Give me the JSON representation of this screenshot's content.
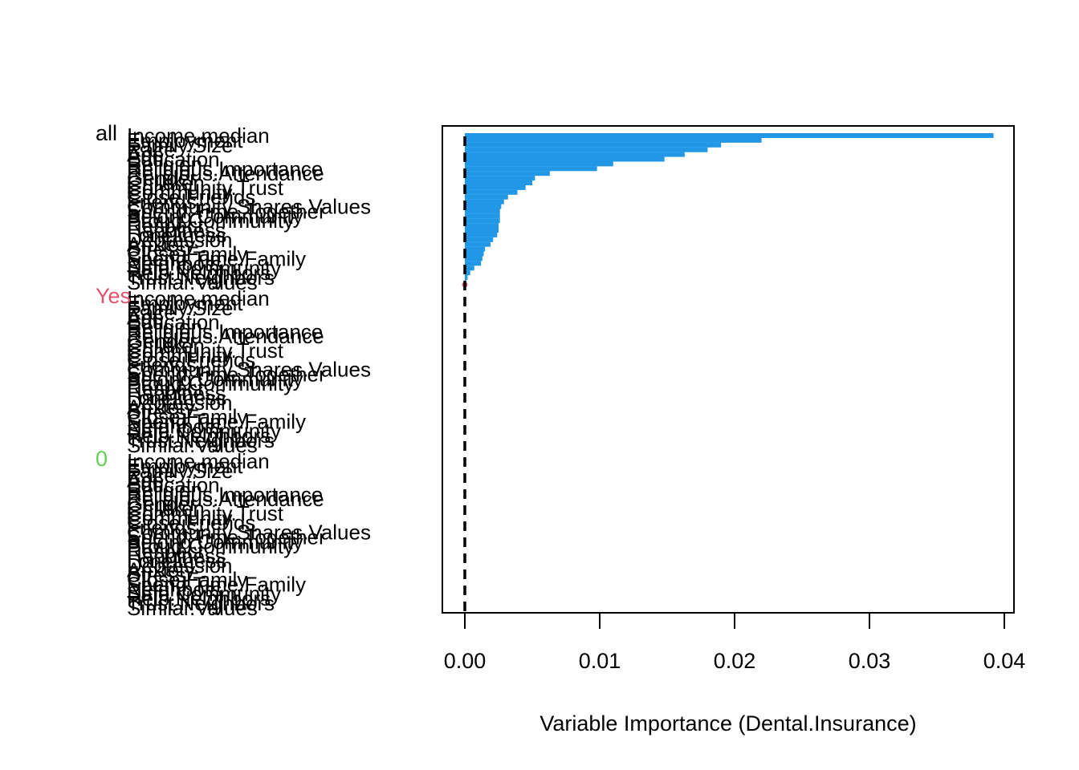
{
  "chart_data": {
    "type": "bar",
    "orientation": "horizontal",
    "xlabel": "Variable Importance (Dental.Insurance)",
    "xlim": [
      0,
      0.04
    ],
    "x_ticks": [
      "0.00",
      "0.01",
      "0.02",
      "0.03",
      "0.04"
    ],
    "x_tick_values": [
      0,
      0.01,
      0.02,
      0.03,
      0.04
    ],
    "reference_line": {
      "x": 0,
      "style": "dashed",
      "color": "#000000"
    },
    "groups": [
      {
        "label": "all",
        "color": "#000000",
        "bar_color": "#2297E6"
      },
      {
        "label": "Yes",
        "color": "#DF536B",
        "bar_color": "#DF536B"
      },
      {
        "label": "0",
        "color": "#61D04F",
        "bar_color": "#61D04F"
      }
    ],
    "categories": [
      "Income.median",
      "Employment",
      "Family.Size",
      "Race",
      "Age",
      "Education",
      "Religion",
      "Religious.Importance",
      "Religious.Attendance",
      "Gender",
      "Children",
      "Community.Trust",
      "Community",
      "Close.Friends",
      "Friends",
      "Community.Shares.Values",
      "Spend.Time.Together",
      "Belong.Community",
      "Proud.Community",
      "Respect",
      "Happiness",
      "Loneliness",
      "Depression",
      "Anxiety",
      "Stress",
      "Close.Family",
      "Spend.Time.Family",
      "Neighbors",
      "Safe.Community",
      "Help.Neighbors",
      "Trust.Neighbors",
      "Similar.Values"
    ],
    "series": [
      {
        "name": "all",
        "values": [
          0.0392,
          0.022,
          0.019,
          0.018,
          0.0163,
          0.0148,
          0.011,
          0.0098,
          0.0063,
          0.0052,
          0.005,
          0.0045,
          0.0039,
          0.0032,
          0.0029,
          0.0027,
          0.0026,
          0.0026,
          0.0026,
          0.0025,
          0.0025,
          0.0024,
          0.0021,
          0.0019,
          0.0015,
          0.0014,
          0.0013,
          0.0012,
          0.0007,
          0.0004,
          0.0002,
          0.0001
        ]
      },
      {
        "name": "Yes",
        "values": [
          0,
          0,
          0,
          0,
          0,
          0,
          0,
          0,
          0,
          0,
          0,
          0,
          0,
          0,
          0,
          0,
          0,
          0,
          0,
          0,
          0,
          0,
          0,
          0,
          0,
          0,
          0,
          0,
          0,
          0,
          0,
          0
        ]
      },
      {
        "name": "0",
        "values": [
          0,
          0,
          0,
          0,
          0,
          0,
          0,
          0,
          0,
          0,
          0,
          0,
          0,
          0,
          0,
          0,
          0,
          0,
          0,
          0,
          0,
          0,
          0,
          0,
          0,
          0,
          0,
          0,
          0,
          0,
          0,
          0
        ]
      }
    ]
  }
}
